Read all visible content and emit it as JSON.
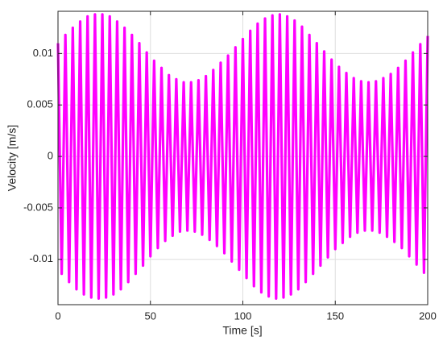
{
  "chart_data": {
    "type": "line",
    "x_label": "Time [s]",
    "y_label": "Velocity [m/s]",
    "x": [
      0,
      2,
      4,
      6,
      8,
      10,
      12,
      14,
      16,
      18,
      20,
      22,
      24,
      26,
      28,
      30,
      32,
      34,
      36,
      38,
      40,
      42,
      44,
      46,
      48,
      50,
      52,
      54,
      56,
      58,
      60,
      62,
      64,
      66,
      68,
      70,
      72,
      74,
      76,
      78,
      80,
      82,
      84,
      86,
      88,
      90,
      92,
      94,
      96,
      98,
      100,
      102,
      104,
      106,
      108,
      110,
      112,
      114,
      116,
      118,
      120,
      122,
      124,
      126,
      128,
      130,
      132,
      134,
      136,
      138,
      140,
      142,
      144,
      146,
      148,
      150,
      152,
      154,
      156,
      158,
      160,
      162,
      164,
      166,
      168,
      170,
      172,
      174,
      176,
      178,
      180,
      182,
      184,
      186,
      188,
      190,
      192,
      194,
      196,
      198,
      200
    ],
    "series": [
      {
        "color": "#ff00ff",
        "values": [
          0.011,
          -0.0114,
          0.0118,
          -0.0122,
          0.0125,
          -0.0129,
          0.0131,
          -0.0134,
          0.0136,
          -0.0137,
          0.0138,
          -0.0138,
          0.0138,
          -0.0137,
          0.0136,
          -0.0134,
          0.0131,
          -0.0129,
          0.0125,
          -0.0122,
          0.0118,
          -0.0114,
          0.011,
          -0.0106,
          0.0101,
          -0.0097,
          0.0093,
          -0.0089,
          0.0086,
          -0.0082,
          0.0079,
          -0.0077,
          0.0075,
          -0.0073,
          0.0072,
          -0.0072,
          0.0072,
          -0.0073,
          0.0074,
          -0.0076,
          0.0078,
          -0.0081,
          0.0084,
          -0.0087,
          0.0091,
          -0.0094,
          0.0098,
          -0.0102,
          0.0106,
          -0.011,
          0.0114,
          -0.0118,
          0.0122,
          -0.0126,
          0.0129,
          -0.0132,
          0.0134,
          -0.0136,
          0.0137,
          -0.0138,
          0.0138,
          -0.0137,
          0.0136,
          -0.0134,
          0.0132,
          -0.0129,
          0.0126,
          -0.0122,
          0.0118,
          -0.0114,
          0.011,
          -0.0106,
          0.0102,
          -0.0098,
          0.0094,
          -0.009,
          0.0087,
          -0.0084,
          0.0081,
          -0.0078,
          0.0076,
          -0.0074,
          0.0073,
          -0.0072,
          0.0072,
          -0.0072,
          0.0073,
          -0.0074,
          0.0076,
          -0.0078,
          0.008,
          -0.0083,
          0.0086,
          -0.0089,
          0.0093,
          -0.0097,
          0.0101,
          -0.0105,
          0.0109,
          -0.0113,
          0.0117
        ]
      }
    ],
    "xlim": [
      0,
      200
    ],
    "xticks": [
      0,
      50,
      100,
      150,
      200
    ],
    "ylim": [
      -0.0144,
      0.0141
    ],
    "yticks": [
      -0.01,
      -0.005,
      0,
      0.005,
      0.01
    ],
    "grid": true
  }
}
